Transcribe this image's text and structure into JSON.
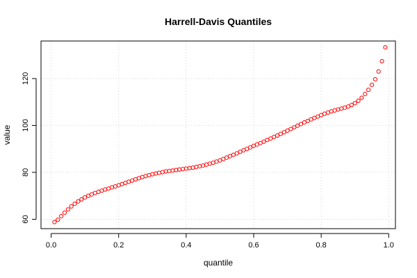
{
  "chart_data": {
    "type": "scatter",
    "title": "Harrell-Davis Quantiles",
    "xlabel": "quantile",
    "ylabel": "value",
    "xlim": [
      -0.03,
      1.02
    ],
    "ylim": [
      56,
      136
    ],
    "xticks": [
      0,
      0.2,
      0.4,
      0.6,
      0.8,
      1
    ],
    "xtick_labels": [
      "0.0",
      "0.2",
      "0.4",
      "0.6",
      "0.8",
      "1.0"
    ],
    "yticks": [
      60,
      80,
      100,
      120
    ],
    "ytick_labels": [
      "60",
      "80",
      "100",
      "120"
    ],
    "grid": true,
    "point_color": "#ff0000",
    "series": [
      {
        "x": [
          0.01,
          0.02,
          0.03,
          0.04,
          0.05,
          0.06,
          0.07,
          0.08,
          0.09,
          0.1,
          0.11,
          0.12,
          0.13,
          0.14,
          0.15,
          0.16,
          0.17,
          0.18,
          0.19,
          0.2,
          0.21,
          0.22,
          0.23,
          0.24,
          0.25,
          0.26,
          0.27,
          0.28,
          0.29,
          0.3,
          0.31,
          0.32,
          0.33,
          0.34,
          0.35,
          0.36,
          0.37,
          0.38,
          0.39,
          0.4,
          0.41,
          0.42,
          0.43,
          0.44,
          0.45,
          0.46,
          0.47,
          0.48,
          0.49,
          0.5,
          0.51,
          0.52,
          0.53,
          0.54,
          0.55,
          0.56,
          0.57,
          0.58,
          0.59,
          0.6,
          0.61,
          0.62,
          0.63,
          0.64,
          0.65,
          0.66,
          0.67,
          0.68,
          0.69,
          0.7,
          0.71,
          0.72,
          0.73,
          0.74,
          0.75,
          0.76,
          0.77,
          0.78,
          0.79,
          0.8,
          0.81,
          0.82,
          0.83,
          0.84,
          0.85,
          0.86,
          0.87,
          0.88,
          0.89,
          0.9,
          0.91,
          0.92,
          0.93,
          0.94,
          0.95,
          0.96,
          0.97,
          0.98,
          0.99
        ],
        "values": [
          58.8,
          59.8,
          61.3,
          62.8,
          64.2,
          65.5,
          66.6,
          67.6,
          68.5,
          69.3,
          70.0,
          70.6,
          71.2,
          71.7,
          72.2,
          72.7,
          73.1,
          73.6,
          74.0,
          74.5,
          75.0,
          75.5,
          76.0,
          76.5,
          77.0,
          77.5,
          78.0,
          78.4,
          78.8,
          79.2,
          79.5,
          79.8,
          80.1,
          80.4,
          80.6,
          80.8,
          81.0,
          81.2,
          81.4,
          81.6,
          81.8,
          82.0,
          82.3,
          82.6,
          82.9,
          83.3,
          83.7,
          84.1,
          84.6,
          85.1,
          85.7,
          86.3,
          86.9,
          87.5,
          88.1,
          88.8,
          89.4,
          90.0,
          90.6,
          91.3,
          91.9,
          92.5,
          93.1,
          93.8,
          94.4,
          95.1,
          95.7,
          96.4,
          97.1,
          97.8,
          98.5,
          99.2,
          99.9,
          100.6,
          101.3,
          101.9,
          102.6,
          103.2,
          103.8,
          104.4,
          105.0,
          105.5,
          106.0,
          106.4,
          106.8,
          107.2,
          107.6,
          108.1,
          108.7,
          109.5,
          110.5,
          111.8,
          113.4,
          115.2,
          117.3,
          119.7,
          123.0,
          127.4,
          133.3
        ]
      }
    ]
  }
}
